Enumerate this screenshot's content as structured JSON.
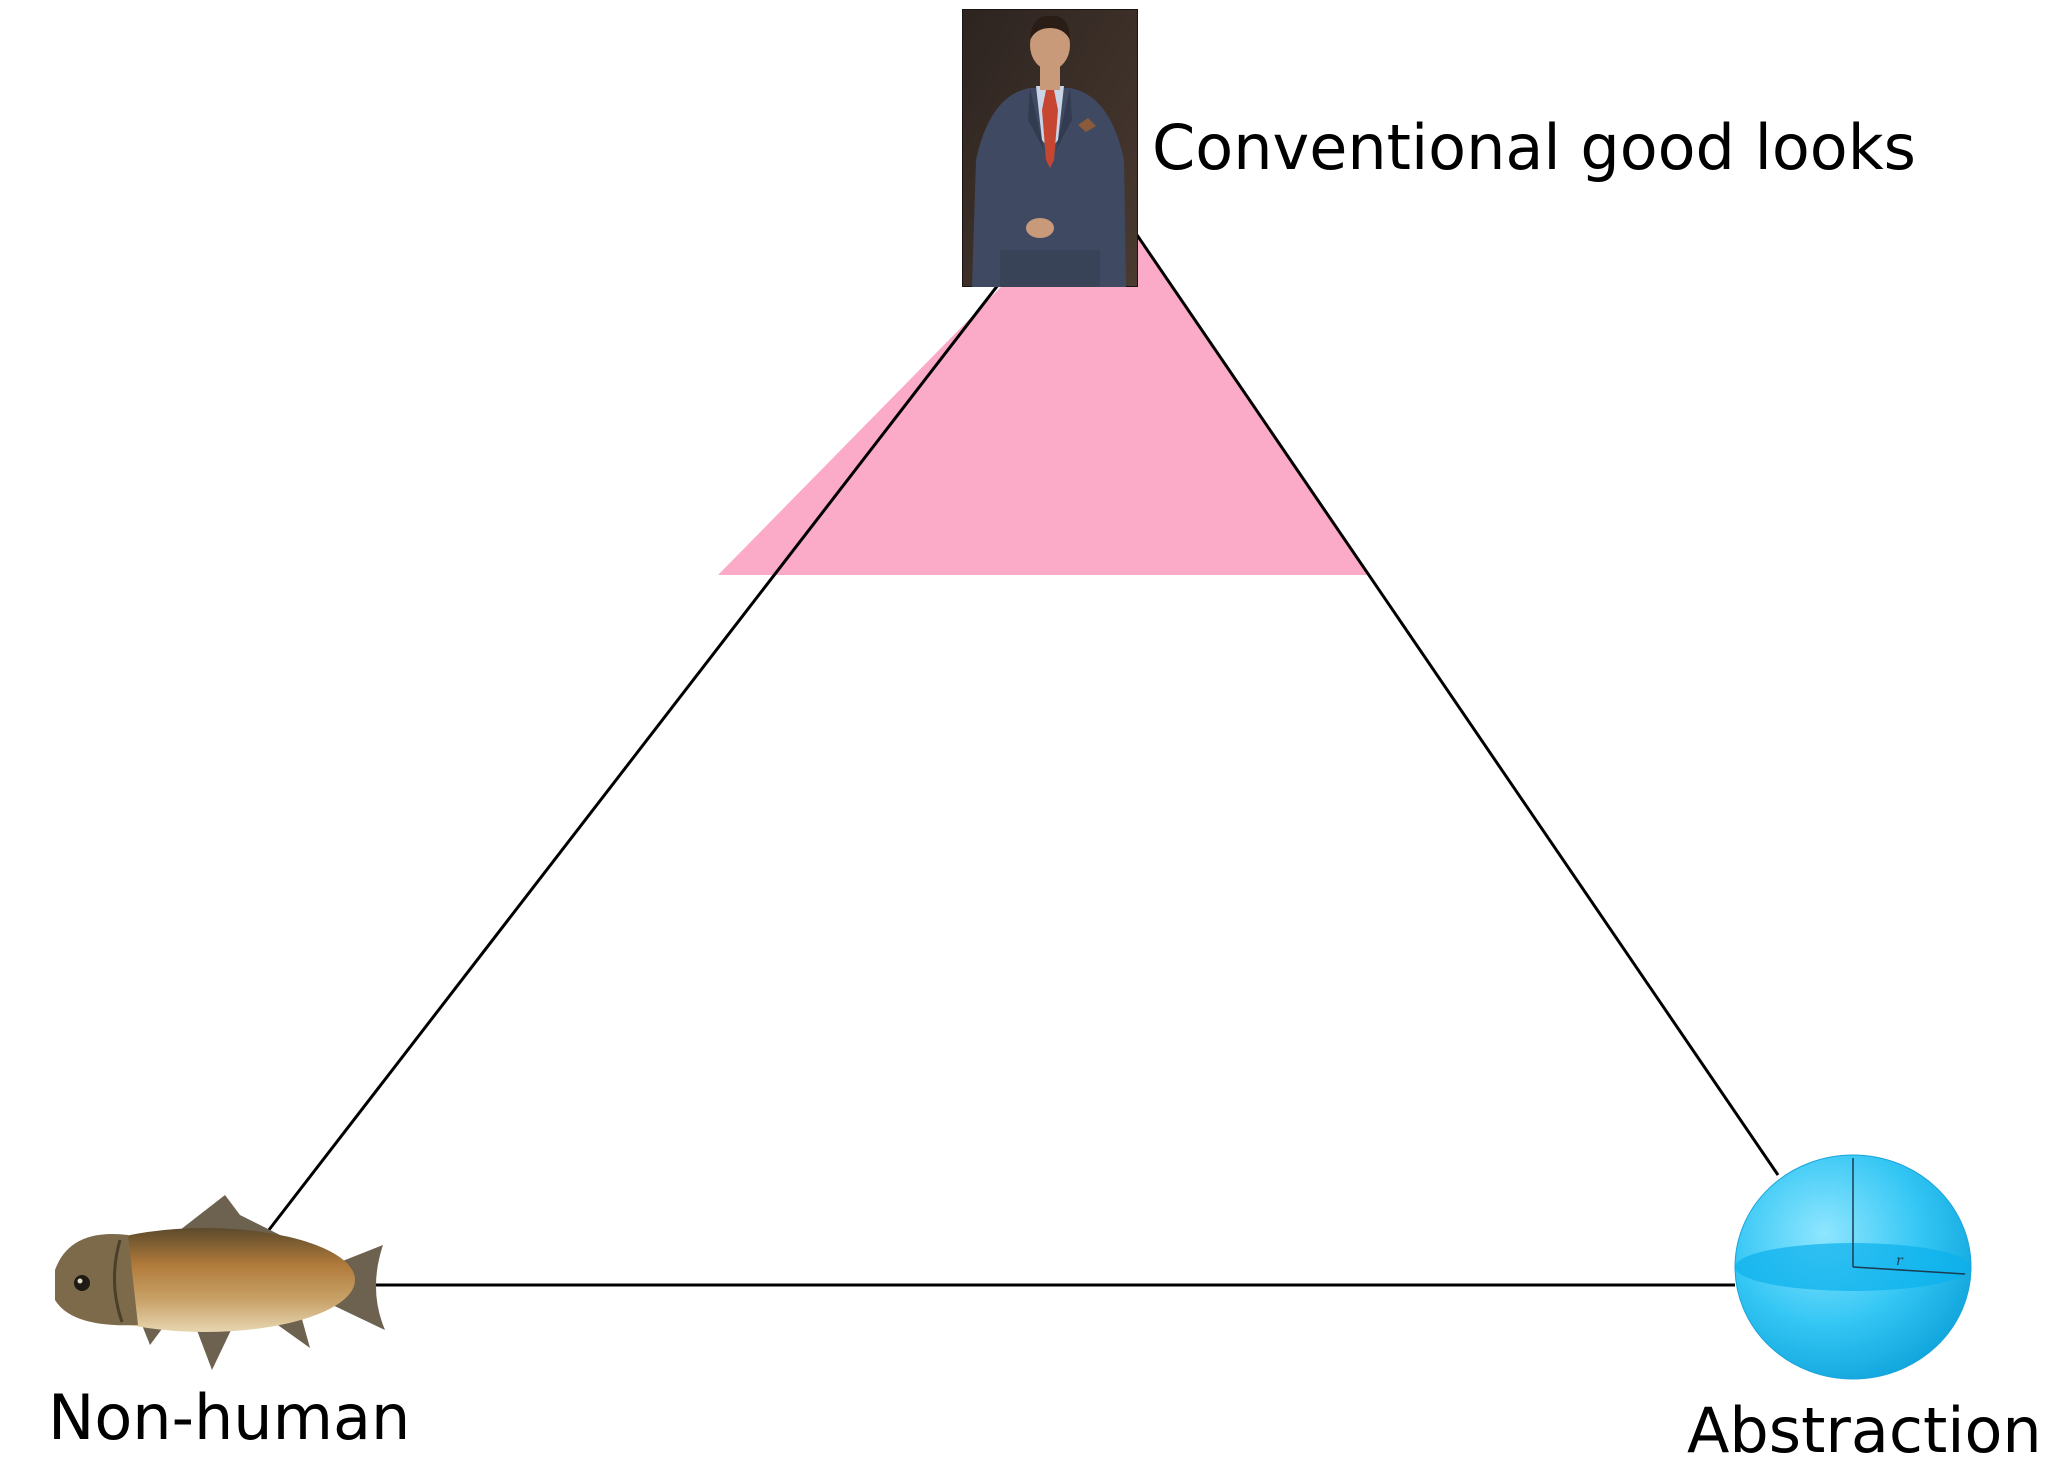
{
  "diagram": {
    "type": "triangle-map",
    "vertices": {
      "top": {
        "label": "Conventional good looks",
        "image": "man-in-suit-photo"
      },
      "bottom_left": {
        "label": "Non-human",
        "image": "fish-illustration"
      },
      "bottom_right": {
        "label": "Abstraction",
        "image": "blue-sphere-illustration"
      }
    },
    "highlight": {
      "region": "top section of triangle (near Conventional good looks)"
    },
    "colors": {
      "highlight": "#fbaac8",
      "edge": "#000000",
      "sphere": "#2ec8f6",
      "fish": "#b07a3a",
      "suit": "#3f4a62",
      "tie": "#c64632"
    }
  }
}
